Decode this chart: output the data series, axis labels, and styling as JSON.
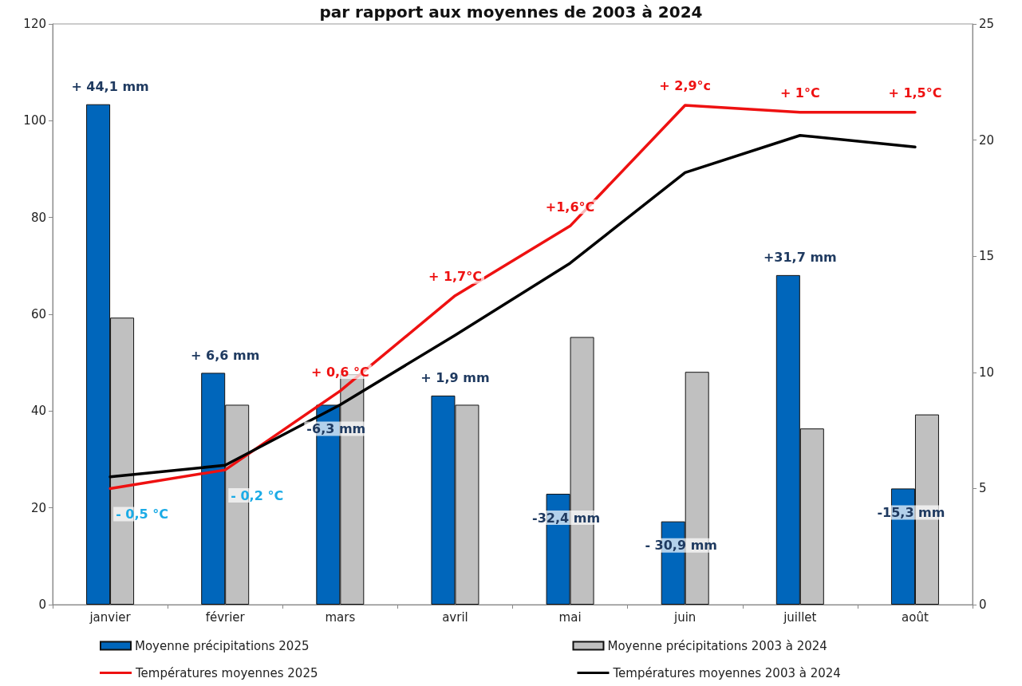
{
  "chart_data": {
    "type": "bar",
    "title": "par rapport aux moyennes de 2003 à 2024",
    "categories": [
      "janvier",
      "février",
      "mars",
      "avril",
      "mai",
      "juin",
      "juillet",
      "août"
    ],
    "series": [
      {
        "name": "Moyenne précipitations 2025",
        "type": "bar",
        "color": "#0066bb",
        "values": [
          103.4,
          47.9,
          41.3,
          43.2,
          22.9,
          17.2,
          68.1,
          24.0
        ]
      },
      {
        "name": "Moyenne précipitations 2003 à 2024",
        "type": "bar",
        "color": "#c0c0c0",
        "values": [
          59.3,
          41.3,
          47.6,
          41.3,
          55.3,
          48.1,
          36.4,
          39.3
        ]
      },
      {
        "name": "Températures moyennes 2025",
        "type": "line",
        "axis": "y2",
        "color": "#ee1111",
        "values": [
          5.0,
          5.8,
          9.2,
          13.3,
          16.3,
          21.5,
          21.2,
          21.2
        ]
      },
      {
        "name": "Températures moyennes 2003 à 2024",
        "type": "line",
        "axis": "y2",
        "color": "#000000",
        "values": [
          5.5,
          6.0,
          8.6,
          11.6,
          14.7,
          18.6,
          20.2,
          19.7
        ]
      }
    ],
    "annotations": [
      {
        "text": "+ 44,1 mm",
        "x": "janvier",
        "y": 103.4
      },
      {
        "text": "+ 6,6 mm",
        "x": "février",
        "y": 47.9
      },
      {
        "text": "-6,3 mm",
        "x": "mars",
        "y": 41.3
      },
      {
        "text": "+ 1,9 mm",
        "x": "avril",
        "y": 43.2
      },
      {
        "text": "-32,4 mm",
        "x": "mai",
        "y": 22.9
      },
      {
        "text": "- 30,9 mm",
        "x": "juin",
        "y": 17.2
      },
      {
        "text": "+31,7 mm",
        "x": "juillet",
        "y": 68.1
      },
      {
        "text": "-15,3 mm",
        "x": "août",
        "y": 24.0
      },
      "- 0,5 °C",
      "- 0,2 °C",
      "+ 0,6 °C",
      "+ 1,7°C",
      "+1,6°C",
      "+ 2,9°c",
      "+ 1°C",
      "+ 1,5°C"
    ],
    "ylim": [
      0,
      120
    ],
    "yticks": [
      0,
      20,
      40,
      60,
      80,
      100,
      120
    ],
    "y2lim": [
      0,
      25
    ],
    "y2ticks": [
      0,
      5,
      10,
      15,
      20,
      25
    ],
    "legend": "bottom",
    "marker": "none",
    "line_style": "solid",
    "grid": false
  }
}
